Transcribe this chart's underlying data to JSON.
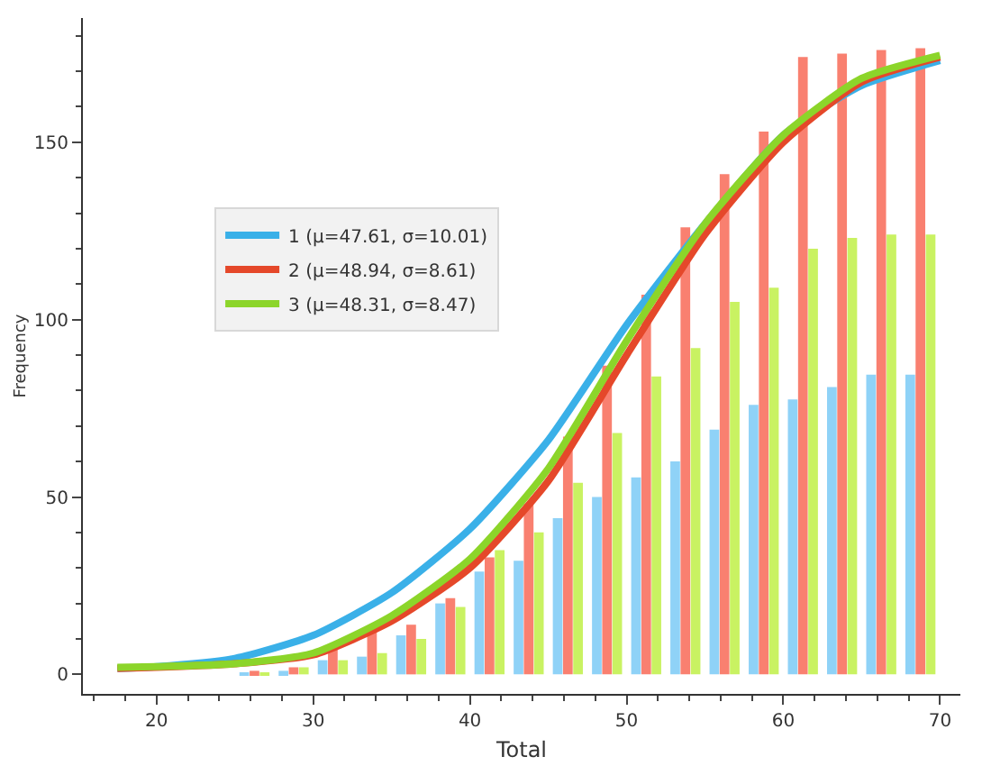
{
  "chart_data": {
    "type": "bar",
    "xlabel": "Total",
    "ylabel": "Frequency",
    "x": [
      26.25,
      28.75,
      31.25,
      33.75,
      36.25,
      38.75,
      41.25,
      43.75,
      46.25,
      48.75,
      51.25,
      53.75,
      56.25,
      58.75,
      61.25,
      63.75,
      66.25,
      68.75
    ],
    "series": [
      {
        "color": "#8fd2f7",
        "values": [
          0.5,
          1,
          4,
          5,
          11,
          20,
          29,
          32,
          44,
          50,
          55.5,
          60,
          69,
          76,
          77.5,
          81,
          84.5,
          84.5
        ]
      },
      {
        "color": "#f98070",
        "values": [
          1,
          2,
          8.5,
          12.5,
          14,
          21.5,
          33,
          48,
          67,
          87,
          107,
          126,
          141,
          153,
          174,
          175,
          176,
          176.5
        ]
      },
      {
        "color": "#c9f262",
        "values": [
          0.5,
          2,
          4,
          6,
          10,
          19,
          35,
          40,
          54,
          68,
          84,
          92,
          105,
          109,
          120,
          123,
          124,
          124
        ]
      },
      {
        "type": "line",
        "name": "1 (μ=47.61, σ=10.01)",
        "color": "#3ab0e8",
        "x": [
          17.5,
          20,
          25,
          30,
          35,
          40,
          45,
          50,
          55,
          60,
          65,
          70
        ],
        "values": [
          1.7,
          2.2,
          4.5,
          11,
          23,
          41,
          66,
          98.5,
          127,
          152,
          166,
          173
        ]
      },
      {
        "type": "line",
        "name": "2 (μ=48.94, σ=8.61)",
        "color": "#e5482a",
        "x": [
          17.5,
          20,
          25,
          30,
          35,
          40,
          45,
          50,
          55,
          60,
          65,
          70
        ],
        "values": [
          1.7,
          2,
          3,
          5.5,
          15,
          30,
          54.5,
          90,
          124,
          150,
          167,
          174
        ]
      },
      {
        "type": "line",
        "name": "3 (μ=48.31, σ=8.47)",
        "color": "#8cd52a",
        "x": [
          17.5,
          20,
          25,
          30,
          35,
          40,
          45,
          50,
          55,
          60,
          65,
          70
        ],
        "values": [
          2,
          2.2,
          3,
          6,
          16.5,
          32.5,
          58,
          94,
          127,
          152,
          168,
          174.5
        ]
      }
    ],
    "xlim": [
      15.3,
      71.3
    ],
    "xticks": [
      20,
      30,
      40,
      50,
      60,
      70
    ],
    "ylim": [
      -5.5,
      185
    ],
    "yticks": [
      0,
      50,
      100,
      150
    ],
    "legend": "top left"
  }
}
